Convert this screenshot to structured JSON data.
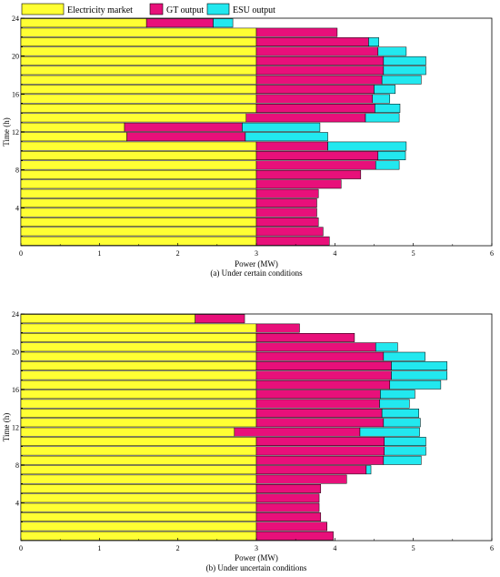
{
  "legend": [
    {
      "label": "Electricity market",
      "color": "#ffff33"
    },
    {
      "label": "GT output",
      "color": "#e8107a"
    },
    {
      "label": "ESU output",
      "color": "#22e8ef"
    }
  ],
  "chart_data": [
    {
      "type": "bar",
      "orientation": "horizontal",
      "stacked": true,
      "caption": "(a) Under certain conditions",
      "xlabel": "Power (MW)",
      "ylabel": "Time (h)",
      "xlim": [
        0,
        6
      ],
      "x_ticks": [
        "0",
        "1",
        "2",
        "3",
        "4",
        "5",
        "6"
      ],
      "ylim": [
        0,
        24
      ],
      "y_ticks": [
        "4",
        "8",
        "12",
        "16",
        "20",
        "24"
      ],
      "categories": [
        1,
        2,
        3,
        4,
        5,
        6,
        7,
        8,
        9,
        10,
        11,
        12,
        13,
        14,
        15,
        16,
        17,
        18,
        19,
        20,
        21,
        22,
        23,
        24
      ],
      "series": [
        {
          "name": "Electricity market",
          "values": [
            3,
            3,
            3,
            3,
            3,
            3,
            3,
            3,
            3,
            3,
            3,
            1.35,
            1.32,
            2.87,
            3,
            3,
            3,
            3,
            3,
            3,
            3,
            3,
            3,
            1.6
          ]
        },
        {
          "name": "GT output",
          "values": [
            0.93,
            0.85,
            0.79,
            0.77,
            0.77,
            0.79,
            1.08,
            1.33,
            1.52,
            1.55,
            0.91,
            1.51,
            1.5,
            1.52,
            1.51,
            1.48,
            1.5,
            1.6,
            1.62,
            1.62,
            1.55,
            1.43,
            1.03,
            0.85
          ]
        },
        {
          "name": "ESU output",
          "values": [
            0,
            0,
            0,
            0,
            0,
            0,
            0,
            0,
            0.3,
            0.35,
            1.0,
            1.05,
            0.99,
            0.43,
            0.32,
            0.22,
            0.27,
            0.5,
            0.54,
            0.54,
            0.36,
            0.13,
            0,
            0.25
          ]
        }
      ]
    },
    {
      "type": "bar",
      "orientation": "horizontal",
      "stacked": true,
      "caption": "(b) Under uncertain conditions",
      "xlabel": "Power (MW)",
      "ylabel": "Time (h)",
      "xlim": [
        0,
        6
      ],
      "x_ticks": [
        "0",
        "1",
        "2",
        "3",
        "4",
        "5",
        "6"
      ],
      "ylim": [
        0,
        24
      ],
      "y_ticks": [
        "4",
        "8",
        "12",
        "16",
        "20",
        "24"
      ],
      "categories": [
        1,
        2,
        3,
        4,
        5,
        6,
        7,
        8,
        9,
        10,
        11,
        12,
        13,
        14,
        15,
        16,
        17,
        18,
        19,
        20,
        21,
        22,
        23,
        24
      ],
      "series": [
        {
          "name": "Electricity market",
          "values": [
            3,
            3,
            3,
            3,
            3,
            3,
            3,
            3,
            3,
            3,
            3,
            2.72,
            3,
            3,
            3,
            3,
            3,
            3,
            3,
            3,
            3,
            3,
            3,
            2.22
          ]
        },
        {
          "name": "GT output",
          "values": [
            0.98,
            0.9,
            0.82,
            0.8,
            0.8,
            0.82,
            1.15,
            1.4,
            1.62,
            1.63,
            1.63,
            1.6,
            1.62,
            1.6,
            1.57,
            1.58,
            1.7,
            1.72,
            1.72,
            1.62,
            1.52,
            1.25,
            0.55,
            0.63
          ]
        },
        {
          "name": "ESU output",
          "values": [
            0,
            0,
            0,
            0,
            0,
            0,
            0,
            0.06,
            0.48,
            0.53,
            0.53,
            0.76,
            0.47,
            0.47,
            0.38,
            0.44,
            0.65,
            0.71,
            0.71,
            0.53,
            0.28,
            0,
            0,
            0
          ]
        }
      ]
    }
  ]
}
